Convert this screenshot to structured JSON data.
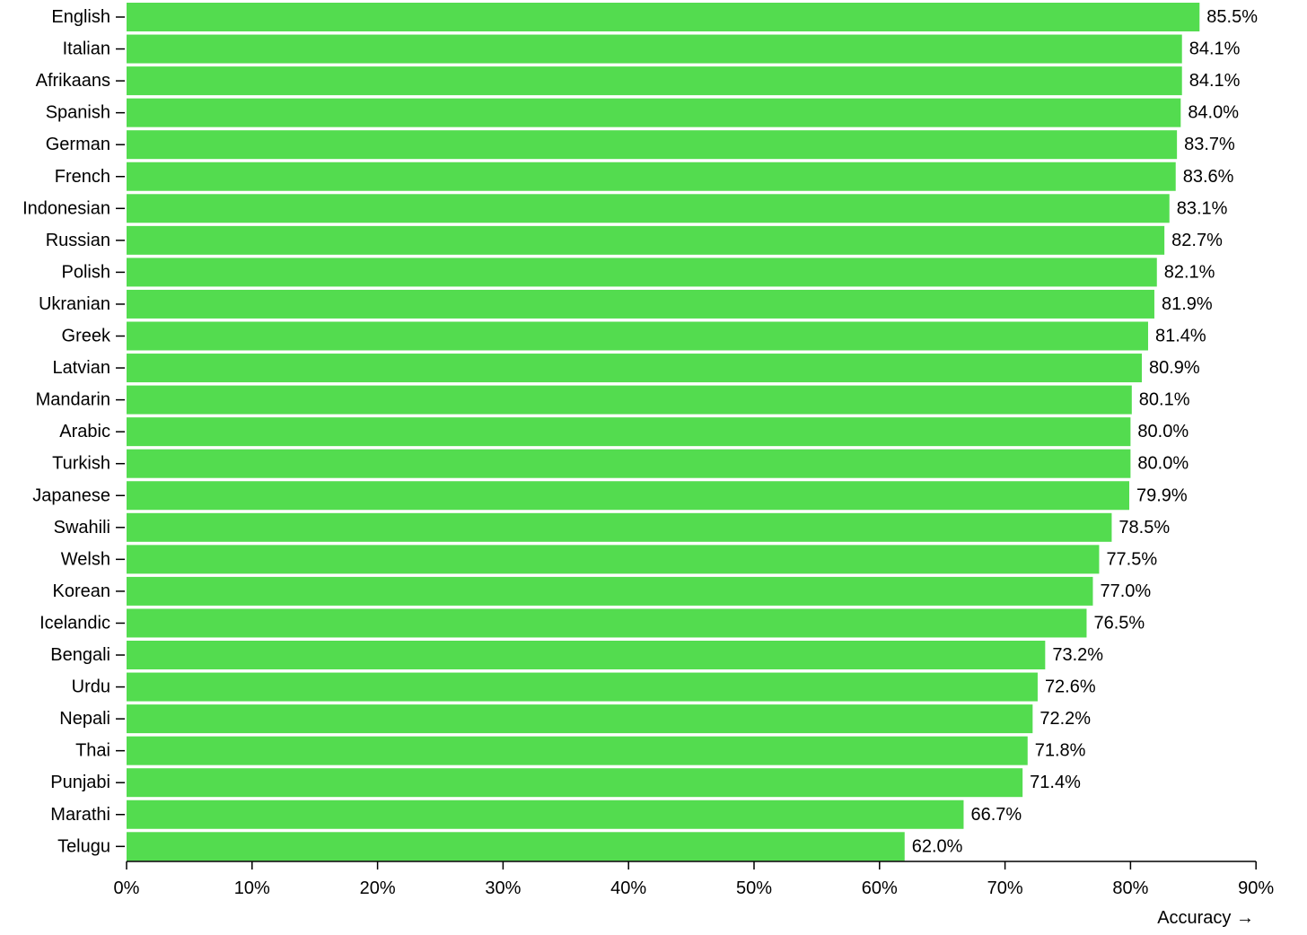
{
  "chart_data": {
    "type": "bar",
    "orientation": "horizontal",
    "categories": [
      "English",
      "Italian",
      "Afrikaans",
      "Spanish",
      "German",
      "French",
      "Indonesian",
      "Russian",
      "Polish",
      "Ukranian",
      "Greek",
      "Latvian",
      "Mandarin",
      "Arabic",
      "Turkish",
      "Japanese",
      "Swahili",
      "Welsh",
      "Korean",
      "Icelandic",
      "Bengali",
      "Urdu",
      "Nepali",
      "Thai",
      "Punjabi",
      "Marathi",
      "Telugu"
    ],
    "values": [
      85.5,
      84.1,
      84.1,
      84.0,
      83.7,
      83.6,
      83.1,
      82.7,
      82.1,
      81.9,
      81.4,
      80.9,
      80.1,
      80.0,
      80.0,
      79.9,
      78.5,
      77.5,
      77.0,
      76.5,
      73.2,
      72.6,
      72.2,
      71.8,
      71.4,
      66.7,
      62.0
    ],
    "value_labels": [
      "85.5%",
      "84.1%",
      "84.1%",
      "84.0%",
      "83.7%",
      "83.6%",
      "83.1%",
      "82.7%",
      "82.1%",
      "81.9%",
      "81.4%",
      "80.9%",
      "80.1%",
      "80.0%",
      "80.0%",
      "79.9%",
      "78.5%",
      "77.5%",
      "77.0%",
      "76.5%",
      "73.2%",
      "72.6%",
      "72.2%",
      "71.8%",
      "71.4%",
      "66.7%",
      "62.0%"
    ],
    "xlim": [
      0,
      90
    ],
    "xticks": [
      0,
      10,
      20,
      30,
      40,
      50,
      60,
      70,
      80,
      90
    ],
    "xtick_labels": [
      "0%",
      "10%",
      "20%",
      "30%",
      "40%",
      "50%",
      "60%",
      "70%",
      "80%",
      "90%"
    ],
    "xlabel": "Accuracy →",
    "ylabel": "",
    "title": "",
    "grid": false,
    "bar_color": "#53dc4f"
  }
}
